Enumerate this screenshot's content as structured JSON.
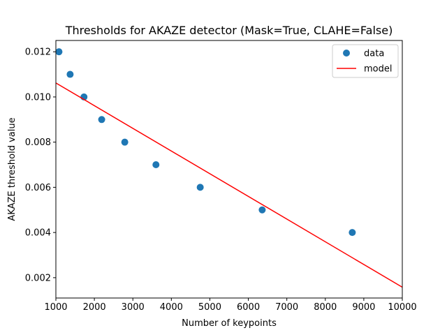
{
  "chart_data": {
    "type": "scatter",
    "title": "Thresholds for AKAZE detector (Mask=True, CLAHE=False)",
    "xlabel": "Number of keypoints",
    "ylabel": "AKAZE threshold value",
    "xlim": [
      1000,
      10000
    ],
    "ylim": [
      0.0011,
      0.0125
    ],
    "xticks": [
      1000,
      2000,
      3000,
      4000,
      5000,
      6000,
      7000,
      8000,
      9000,
      10000
    ],
    "xtick_labels": [
      "1000",
      "2000",
      "3000",
      "4000",
      "5000",
      "6000",
      "7000",
      "8000",
      "9000",
      "10000"
    ],
    "yticks": [
      0.002,
      0.004,
      0.006,
      0.008,
      0.01,
      0.012
    ],
    "ytick_labels": [
      "0.002",
      "0.004",
      "0.006",
      "0.008",
      "0.010",
      "0.012"
    ],
    "grid": false,
    "legend_position": "top-right",
    "series": [
      {
        "name": "data",
        "kind": "scatter",
        "color": "#1f77b4",
        "x": [
          1080,
          1370,
          1730,
          2190,
          2790,
          3600,
          4750,
          6360,
          8700
        ],
        "y": [
          0.012,
          0.011,
          0.01,
          0.009,
          0.008,
          0.007,
          0.006,
          0.005,
          0.004
        ]
      },
      {
        "name": "model",
        "kind": "line",
        "color": "#ff0000",
        "x": [
          1000,
          10000
        ],
        "y": [
          0.01062,
          0.00158
        ]
      }
    ]
  }
}
